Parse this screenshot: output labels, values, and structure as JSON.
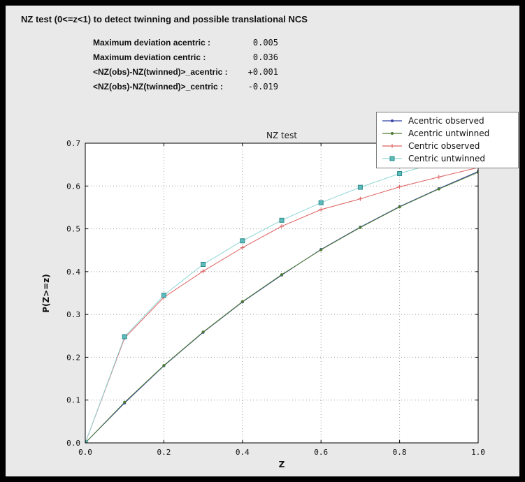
{
  "header": {
    "title": "NZ test (0<=z<1) to detect twinning and possible translational NCS"
  },
  "stats": {
    "rows": [
      {
        "label": "Maximum deviation acentric :",
        "value": "0.005"
      },
      {
        "label": "Maximum deviation centric :",
        "value": "0.036"
      },
      {
        "label": "<NZ(obs)-NZ(twinned)>_acentric :",
        "value": "+0.001"
      },
      {
        "label": "<NZ(obs)-NZ(twinned)>_centric :",
        "value": "-0.019"
      }
    ]
  },
  "colors": {
    "panel_bg": "#e9e9e9",
    "plot_bg": "#ffffff",
    "frame": "#000000",
    "grid": "#9c9c9c",
    "axis": "#000000",
    "tick_text": "#111111"
  },
  "chart_data": {
    "type": "line",
    "title": "NZ test",
    "xlabel": "Z",
    "ylabel": "P(Z>=z)",
    "xlim": [
      0.0,
      1.0
    ],
    "ylim": [
      0.0,
      0.7
    ],
    "xticks": [
      0.0,
      0.2,
      0.4,
      0.6,
      0.8,
      1.0
    ],
    "yticks": [
      0.0,
      0.1,
      0.2,
      0.3,
      0.4,
      0.5,
      0.6,
      0.7
    ],
    "grid": true,
    "legend_position": "top-right",
    "x": [
      0.0,
      0.1,
      0.2,
      0.3,
      0.4,
      0.5,
      0.6,
      0.7,
      0.8,
      0.9,
      1.0
    ],
    "series": [
      {
        "name": "Acentric observed",
        "color": "#3345a8",
        "marker": "dot",
        "values": [
          0.0,
          0.093,
          0.18,
          0.258,
          0.329,
          0.392,
          0.452,
          0.504,
          0.552,
          0.594,
          0.634
        ]
      },
      {
        "name": "Acentric untwinned",
        "color": "#4e7b2f",
        "marker": "dot",
        "values": [
          0.0,
          0.095,
          0.181,
          0.259,
          0.33,
          0.393,
          0.451,
          0.503,
          0.551,
          0.593,
          0.632
        ]
      },
      {
        "name": "Centric observed",
        "color": "#dd5f5f",
        "marker": "plus",
        "values": [
          0.0,
          0.245,
          0.34,
          0.401,
          0.456,
          0.506,
          0.545,
          0.57,
          0.598,
          0.621,
          0.643
        ]
      },
      {
        "name": "Centric untwinned",
        "color": "#8fd6d6",
        "marker": "square",
        "marker_fill": "#5fbcbc",
        "marker_stroke": "#2e8b8b",
        "values": [
          0.0,
          0.248,
          0.345,
          0.417,
          0.472,
          0.52,
          0.561,
          0.597,
          0.629,
          0.656,
          0.683
        ]
      }
    ]
  }
}
